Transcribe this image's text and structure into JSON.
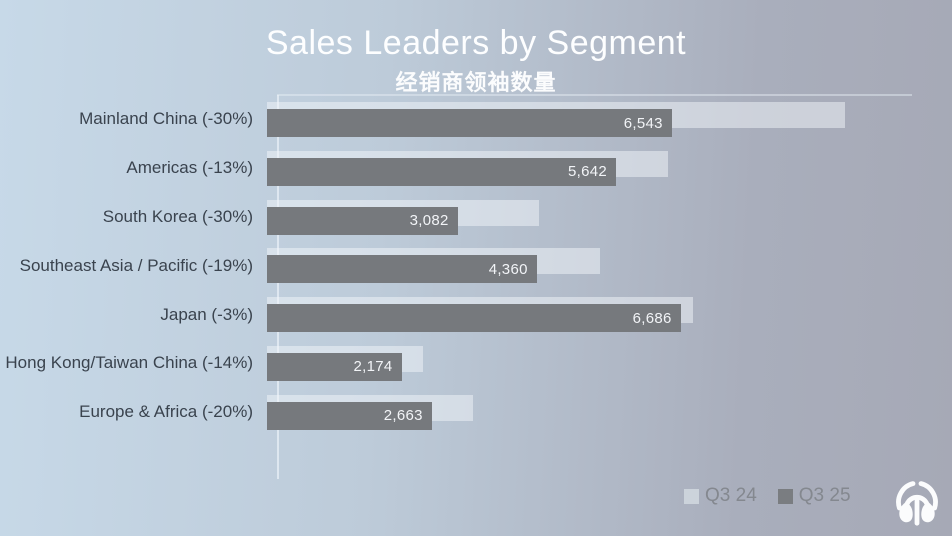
{
  "header": {
    "title": "Sales Leaders by Segment",
    "subtitle_zh": "经销商领袖数量"
  },
  "chart_data": {
    "type": "bar",
    "orientation": "horizontal",
    "title": "Sales Leaders by Segment",
    "subtitle": "经销商领袖数量",
    "categories": [
      "Mainland China (-30%)",
      "Americas (-13%)",
      "South Korea (-30%)",
      "Southeast Asia / Pacific (-19%)",
      "Japan (-3%)",
      "Hong Kong/Taiwan China (-14%)",
      "Europe & Africa (-20%)"
    ],
    "percent_change": [
      -30,
      -13,
      -30,
      -19,
      -3,
      -14,
      -20
    ],
    "series": [
      {
        "name": "Q3 24",
        "color": "#ccd3db",
        "values_estimated_from_bars": [
          9347,
          6486,
          4403,
          5383,
          6893,
          2528,
          3329
        ],
        "note": "values not labeled on chart; estimated from bar lengths and % change vs Q3 25"
      },
      {
        "name": "Q3 25",
        "color": "#76797d",
        "values": [
          6543,
          5642,
          3082,
          4360,
          6686,
          2174,
          2663
        ],
        "data_labels": [
          "6,543",
          "5,642",
          "3,082",
          "4,360",
          "6,686",
          "2,174",
          "2,663"
        ]
      }
    ],
    "xlim": [
      0,
      10700
    ],
    "grid": false,
    "value_labels_position": "inside-end-of-dark-bar",
    "legend_position": "bottom-right"
  },
  "legend": {
    "items": [
      {
        "label": "Q3 24",
        "color": "#ccd3db"
      },
      {
        "label": "Q3 25",
        "color": "#7a7d81"
      }
    ]
  },
  "logo_icon": "fountain-emblem-icon"
}
